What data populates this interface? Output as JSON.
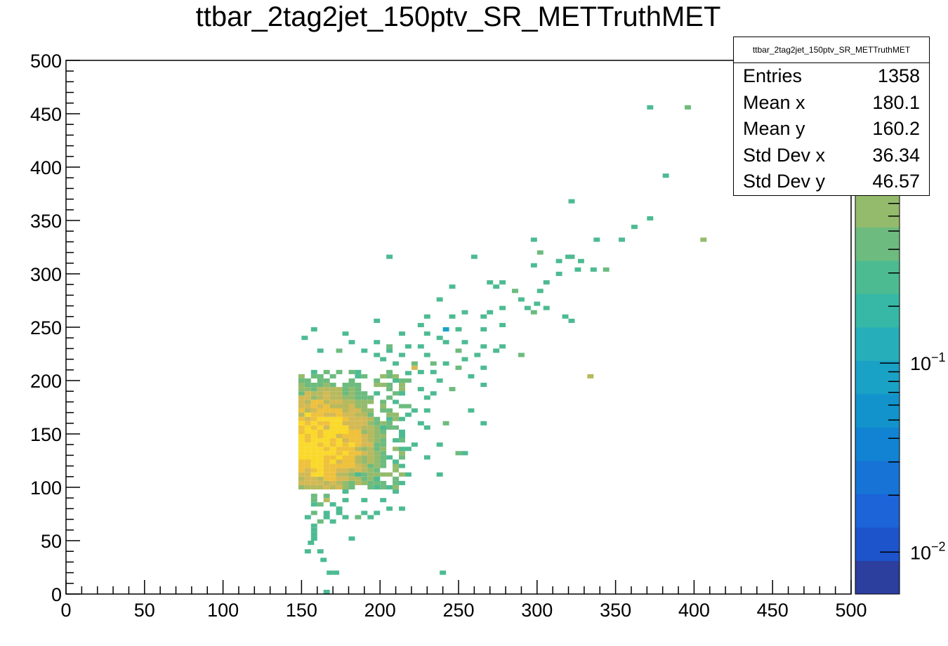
{
  "title": "ttbar_2tag2jet_150ptv_SR_METTruthMET",
  "stats": {
    "title": "ttbar_2tag2jet_150ptv_SR_METTruthMET",
    "rows": [
      {
        "label": "Entries",
        "value": "1358"
      },
      {
        "label": "Mean x",
        "value": "180.1"
      },
      {
        "label": "Mean y",
        "value": "160.2"
      },
      {
        "label": "Std Dev x",
        "value": "36.34"
      },
      {
        "label": "Std Dev y",
        "value": "46.57"
      }
    ]
  },
  "chart_data": {
    "type": "heatmap",
    "title": "ttbar_2tag2jet_150ptv_SR_METTruthMET",
    "xlabel": "",
    "ylabel": "",
    "xlim": [
      0,
      500
    ],
    "ylim": [
      0,
      500
    ],
    "x_ticks": [
      0,
      50,
      100,
      150,
      200,
      250,
      300,
      350,
      400,
      450,
      500
    ],
    "y_ticks": [
      0,
      50,
      100,
      150,
      200,
      250,
      300,
      350,
      400,
      450,
      500
    ],
    "bin_width": 4,
    "colorbar": {
      "scale": "log",
      "range": [
        0.006,
        4
      ],
      "tick_labels": [
        "10^-2",
        "10^-1",
        "1"
      ],
      "palette": [
        "#2c3e9e",
        "#1d54cc",
        "#1c64d8",
        "#1774d6",
        "#1283d2",
        "#1393cc",
        "#1aa1c6",
        "#27aebb",
        "#37b8a6",
        "#4dbb92",
        "#6dbb7e",
        "#94bb6c",
        "#b7b95e",
        "#d4b954",
        "#efc13c",
        "#fad92a"
      ]
    },
    "bins": [
      [
        164,
        0,
        0.3
      ],
      [
        166,
        18,
        0.3
      ],
      [
        170,
        18,
        0.3
      ],
      [
        238,
        18,
        0.3
      ],
      [
        162,
        30,
        0.3
      ],
      [
        152,
        38,
        0.3
      ],
      [
        160,
        38,
        0.3
      ],
      [
        154,
        46,
        0.3
      ],
      [
        156,
        50,
        0.3
      ],
      [
        180,
        50,
        0.3
      ],
      [
        156,
        54,
        0.3
      ],
      [
        156,
        58,
        0.3
      ],
      [
        156,
        62,
        0.3
      ],
      [
        160,
        66,
        0.4
      ],
      [
        168,
        66,
        0.3
      ],
      [
        152,
        70,
        0.3
      ],
      [
        164,
        70,
        0.3
      ],
      [
        176,
        70,
        0.3
      ],
      [
        184,
        70,
        0.4
      ],
      [
        192,
        70,
        0.3
      ],
      [
        156,
        74,
        0.4
      ],
      [
        164,
        74,
        0.3
      ],
      [
        172,
        74,
        0.3
      ],
      [
        188,
        74,
        0.3
      ],
      [
        196,
        74,
        0.3
      ],
      [
        204,
        78,
        0.3
      ],
      [
        212,
        78,
        0.3
      ],
      [
        172,
        78,
        0.3
      ],
      [
        156,
        82,
        0.3
      ],
      [
        160,
        82,
        0.4
      ],
      [
        168,
        82,
        0.3
      ],
      [
        156,
        86,
        0.5
      ],
      [
        164,
        86,
        1.0
      ],
      [
        176,
        86,
        0.3
      ],
      [
        188,
        86,
        0.3
      ],
      [
        200,
        86,
        0.3
      ],
      [
        156,
        90,
        0.5
      ],
      [
        164,
        90,
        0.5
      ],
      [
        176,
        94,
        0.3
      ],
      [
        208,
        94,
        0.3
      ],
      [
        204,
        98,
        0.3
      ],
      [
        196,
        98,
        0.3
      ],
      [
        212,
        102,
        0.3
      ],
      [
        216,
        110,
        0.3
      ],
      [
        236,
        110,
        0.3
      ],
      [
        196,
        106,
        0.3
      ],
      [
        184,
        110,
        0.3
      ],
      [
        208,
        122,
        0.3
      ],
      [
        204,
        126,
        0.3
      ],
      [
        228,
        126,
        0.3
      ],
      [
        248,
        130,
        0.5
      ],
      [
        252,
        130,
        0.3
      ],
      [
        216,
        134,
        0.3
      ],
      [
        220,
        138,
        0.3
      ],
      [
        236,
        138,
        0.3
      ],
      [
        208,
        142,
        0.3
      ],
      [
        212,
        150,
        0.3
      ],
      [
        200,
        154,
        0.3
      ],
      [
        228,
        154,
        0.3
      ],
      [
        224,
        158,
        0.3
      ],
      [
        212,
        162,
        0.3
      ],
      [
        240,
        158,
        0.5
      ],
      [
        264,
        158,
        0.3
      ],
      [
        212,
        146,
        0.3
      ],
      [
        216,
        166,
        0.3
      ],
      [
        220,
        170,
        0.3
      ],
      [
        228,
        170,
        0.3
      ],
      [
        256,
        170,
        0.3
      ],
      [
        216,
        174,
        0.4
      ],
      [
        208,
        178,
        0.3
      ],
      [
        228,
        182,
        0.3
      ],
      [
        232,
        186,
        0.3
      ],
      [
        244,
        190,
        0.4
      ],
      [
        264,
        194,
        0.3
      ],
      [
        212,
        186,
        0.3
      ],
      [
        224,
        190,
        0.3
      ],
      [
        236,
        198,
        0.3
      ],
      [
        256,
        202,
        0.3
      ],
      [
        264,
        210,
        0.3
      ],
      [
        248,
        210,
        0.4
      ],
      [
        232,
        206,
        0.3
      ],
      [
        216,
        198,
        0.5
      ],
      [
        208,
        214,
        0.3
      ],
      [
        232,
        214,
        0.5
      ],
      [
        240,
        214,
        0.3
      ],
      [
        252,
        218,
        0.3
      ],
      [
        260,
        222,
        0.3
      ],
      [
        228,
        222,
        0.3
      ],
      [
        220,
        214,
        0.4
      ],
      [
        212,
        222,
        0.3
      ],
      [
        200,
        218,
        0.3
      ],
      [
        196,
        222,
        0.3
      ],
      [
        188,
        226,
        0.3
      ],
      [
        172,
        226,
        0.4
      ],
      [
        160,
        226,
        0.3
      ],
      [
        204,
        226,
        0.3
      ],
      [
        216,
        230,
        0.3
      ],
      [
        224,
        230,
        0.3
      ],
      [
        248,
        226,
        0.4
      ],
      [
        264,
        230,
        0.3
      ],
      [
        276,
        230,
        0.3
      ],
      [
        288,
        222,
        0.4
      ],
      [
        272,
        226,
        0.3
      ],
      [
        252,
        234,
        0.3
      ],
      [
        180,
        234,
        0.3
      ],
      [
        196,
        234,
        0.3
      ],
      [
        204,
        230,
        0.4
      ],
      [
        240,
        234,
        0.3
      ],
      [
        150,
        238,
        0.3
      ],
      [
        156,
        246,
        0.3
      ],
      [
        176,
        242,
        0.3
      ],
      [
        212,
        242,
        0.3
      ],
      [
        228,
        242,
        0.3
      ],
      [
        236,
        238,
        0.3
      ],
      [
        264,
        246,
        0.3
      ],
      [
        276,
        250,
        0.3
      ],
      [
        248,
        246,
        0.3
      ],
      [
        240,
        246,
        0.1
      ],
      [
        224,
        250,
        0.3
      ],
      [
        196,
        254,
        0.3
      ],
      [
        228,
        258,
        0.3
      ],
      [
        244,
        258,
        0.3
      ],
      [
        252,
        262,
        0.3
      ],
      [
        264,
        258,
        0.3
      ],
      [
        268,
        262,
        0.3
      ],
      [
        276,
        266,
        0.3
      ],
      [
        292,
        266,
        0.3
      ],
      [
        296,
        262,
        0.4
      ],
      [
        304,
        266,
        0.3
      ],
      [
        316,
        258,
        0.3
      ],
      [
        320,
        254,
        0.3
      ],
      [
        300,
        282,
        0.3
      ],
      [
        284,
        282,
        0.4
      ],
      [
        268,
        290,
        0.3
      ],
      [
        304,
        290,
        0.3
      ],
      [
        312,
        298,
        0.3
      ],
      [
        324,
        302,
        0.3
      ],
      [
        334,
        302,
        0.3
      ],
      [
        342,
        302,
        0.4
      ],
      [
        326,
        310,
        0.3
      ],
      [
        318,
        314,
        0.3
      ],
      [
        312,
        310,
        0.3
      ],
      [
        300,
        318,
        0.4
      ],
      [
        296,
        330,
        0.3
      ],
      [
        236,
        274,
        0.3
      ],
      [
        244,
        286,
        0.3
      ],
      [
        272,
        286,
        0.3
      ],
      [
        276,
        290,
        0.3
      ],
      [
        288,
        274,
        0.3
      ],
      [
        298,
        270,
        0.3
      ],
      [
        204,
        314,
        0.3
      ],
      [
        258,
        314,
        0.3
      ],
      [
        296,
        306,
        0.3
      ],
      [
        320,
        314,
        0.3
      ],
      [
        336,
        330,
        0.3
      ],
      [
        352,
        330,
        0.3
      ],
      [
        360,
        342,
        0.3
      ],
      [
        370,
        350,
        0.3
      ],
      [
        380,
        390,
        0.3
      ],
      [
        404,
        330,
        0.7
      ],
      [
        370,
        454,
        0.3
      ],
      [
        394,
        454,
        0.4
      ],
      [
        320,
        366,
        0.3
      ],
      [
        332,
        202,
        0.8
      ],
      [
        216,
        205,
        0.3
      ],
      [
        220,
        210,
        1.3
      ],
      [
        224,
        206,
        0.3
      ]
    ],
    "dense_region": {
      "x_range": [
        148,
        216
      ],
      "y_range": [
        98,
        210
      ],
      "core_center": [
        160,
        140
      ],
      "peak_value": 3.5
    }
  }
}
